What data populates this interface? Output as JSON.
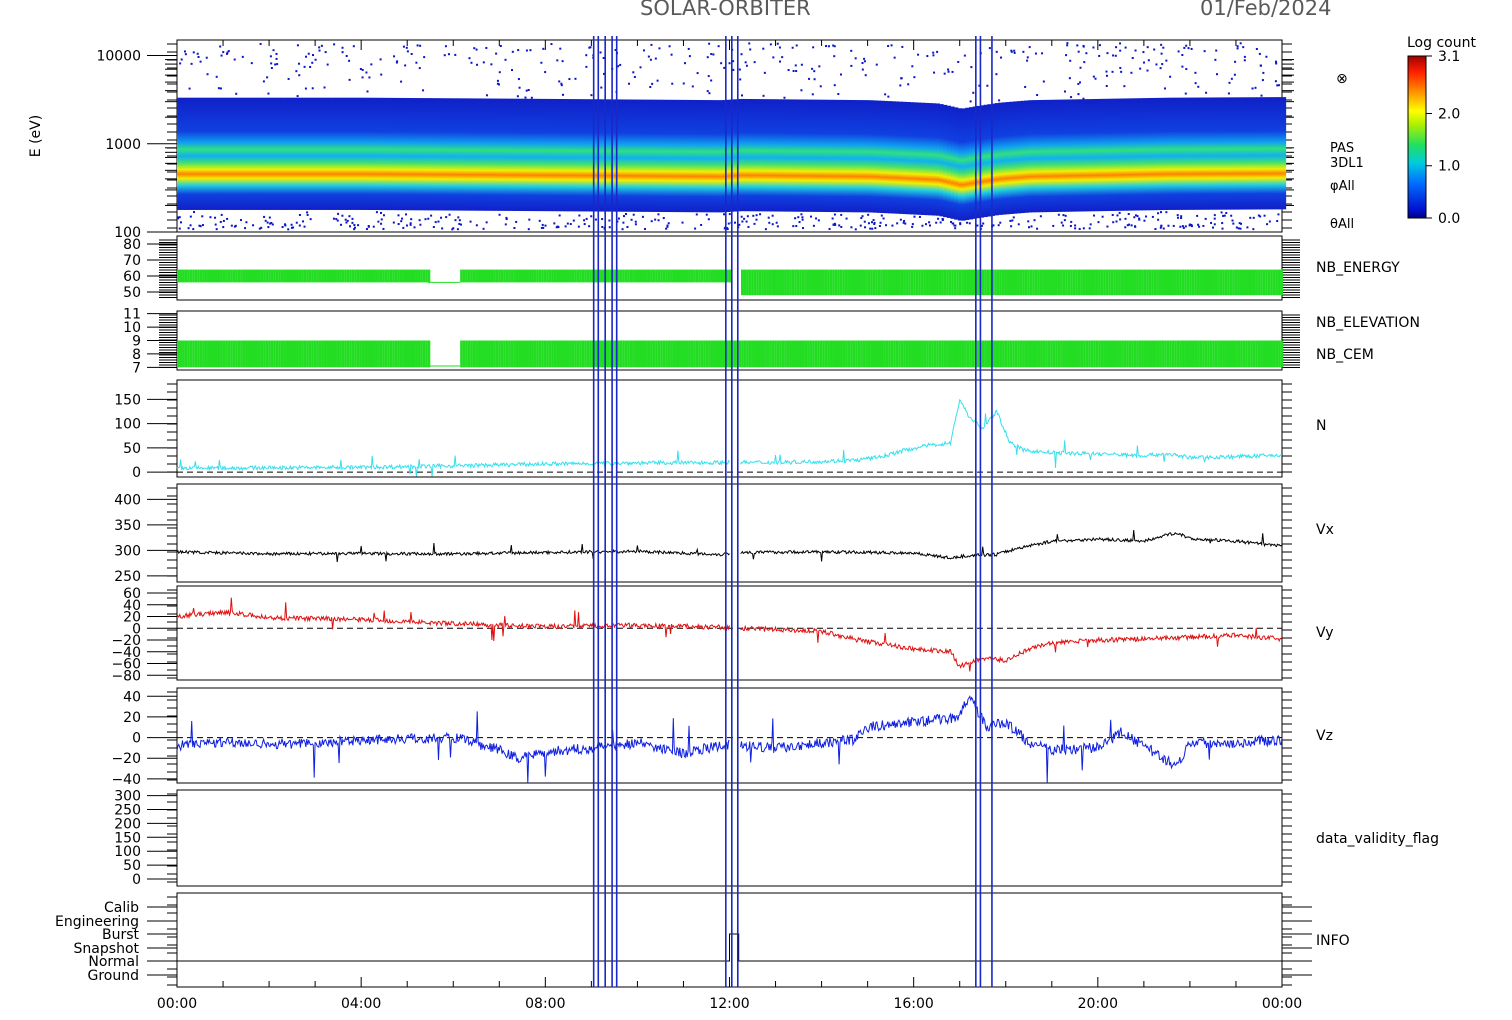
{
  "header": {
    "title": "SOLAR-ORBITER",
    "date": "01/Feb/2024"
  },
  "colors": {
    "spec_blue": "#0a14c8",
    "green": "#22dd22",
    "cyan": "#33e0ee",
    "black": "#000000",
    "red": "#e01010",
    "blue": "#1020e0",
    "vline": "#1a28c8",
    "dvf": "#666666"
  },
  "chart_data": [
    {
      "type": "heatmap",
      "panel": "spectrogram",
      "ylabel": "E (eV)",
      "yscale": "log",
      "ylim": [
        100,
        15000
      ],
      "yticks": [
        {
          "v": 10000,
          "t": "10000"
        },
        {
          "v": 1000,
          "t": "1000"
        },
        {
          "v": 100,
          "t": "100"
        }
      ],
      "right_labels": [
        "PAS",
        "3DL1",
        "φAll",
        "θAll"
      ],
      "legend_symbol": "⊗",
      "colorbar": {
        "title": "Log count",
        "range": [
          0.0,
          3.1
        ],
        "ticks": [
          {
            "v": 3.1,
            "t": "3.1"
          },
          {
            "v": 2.0,
            "t": "2.0"
          },
          {
            "v": 1.0,
            "t": "1.0"
          },
          {
            "v": 0.0,
            "t": "0.0"
          }
        ]
      },
      "peak_energy_eV": [
        {
          "h": 0,
          "e": 640
        },
        {
          "h": 4,
          "e": 640
        },
        {
          "h": 8,
          "e": 620
        },
        {
          "h": 11.8,
          "e": 600
        },
        {
          "h": 12.2,
          "e": 620
        },
        {
          "h": 15,
          "e": 600
        },
        {
          "h": 16.5,
          "e": 550
        },
        {
          "h": 17,
          "e": 480
        },
        {
          "h": 17.8,
          "e": 560
        },
        {
          "h": 18.5,
          "e": 600
        },
        {
          "h": 21.5,
          "e": 640
        },
        {
          "h": 24,
          "e": 650
        }
      ]
    },
    {
      "type": "bar",
      "panel": "nb_energy",
      "label": "NB_ENERGY",
      "ylim": [
        45,
        85
      ],
      "yticks": [
        {
          "v": 80,
          "t": "80"
        },
        {
          "v": 70,
          "t": "70"
        },
        {
          "v": 60,
          "t": "60"
        },
        {
          "v": 50,
          "t": "50"
        }
      ],
      "segments": [
        {
          "x0": 0,
          "x1": 5.45,
          "low": 56,
          "high": 64
        },
        {
          "x0": 6.15,
          "x1": 12.0,
          "low": 56,
          "high": 64
        },
        {
          "x0": 12.25,
          "x1": 24,
          "low": 48,
          "high": 64
        }
      ],
      "gap_level": 56,
      "gap": [
        5.45,
        6.15
      ]
    },
    {
      "type": "bar",
      "panel": "nb_elev",
      "labels": [
        "NB_ELEVATION",
        "NB_CEM"
      ],
      "ylim": [
        6.8,
        11.2
      ],
      "yticks": [
        {
          "v": 11,
          "t": "11"
        },
        {
          "v": 10,
          "t": "10"
        },
        {
          "v": 9,
          "t": "9"
        },
        {
          "v": 8,
          "t": "8"
        },
        {
          "v": 7,
          "t": "7"
        }
      ],
      "segments": [
        {
          "x0": 0,
          "x1": 5.45,
          "low": 7,
          "high": 9
        },
        {
          "x0": 6.15,
          "x1": 24,
          "low": 7,
          "high": 9
        }
      ],
      "gap": [
        5.45,
        6.15
      ]
    },
    {
      "type": "line",
      "panel": "density",
      "label": "N",
      "ylim": [
        -10,
        190
      ],
      "yticks": [
        {
          "v": 150,
          "t": "150"
        },
        {
          "v": 100,
          "t": "100"
        },
        {
          "v": 50,
          "t": "50"
        },
        {
          "v": 0,
          "t": "0"
        }
      ],
      "dashed_zero": true,
      "points": [
        [
          0,
          8
        ],
        [
          2,
          9
        ],
        [
          4,
          10
        ],
        [
          6,
          13
        ],
        [
          8,
          17
        ],
        [
          10,
          19
        ],
        [
          12,
          20
        ],
        [
          13,
          20
        ],
        [
          14,
          22
        ],
        [
          14.8,
          25
        ],
        [
          15.3,
          32
        ],
        [
          15.8,
          45
        ],
        [
          16.3,
          55
        ],
        [
          16.8,
          60
        ],
        [
          17.0,
          150
        ],
        [
          17.2,
          115
        ],
        [
          17.5,
          90
        ],
        [
          17.8,
          125
        ],
        [
          18.1,
          60
        ],
        [
          18.4,
          45
        ],
        [
          19,
          40
        ],
        [
          20,
          38
        ],
        [
          21,
          34
        ],
        [
          21.5,
          38
        ],
        [
          22,
          30
        ],
        [
          23,
          32
        ],
        [
          24,
          35
        ]
      ],
      "noise": 4
    },
    {
      "type": "line",
      "panel": "vx",
      "label": "Vx",
      "ylim": [
        238,
        430
      ],
      "yticks": [
        {
          "v": 400,
          "t": "400"
        },
        {
          "v": 350,
          "t": "350"
        },
        {
          "v": 300,
          "t": "300"
        },
        {
          "v": 250,
          "t": "250"
        }
      ],
      "points": [
        [
          0,
          297
        ],
        [
          2,
          293
        ],
        [
          4,
          294
        ],
        [
          6,
          293
        ],
        [
          8,
          296
        ],
        [
          10,
          298
        ],
        [
          11.8,
          292
        ],
        [
          12.2,
          296
        ],
        [
          14,
          297
        ],
        [
          16,
          295
        ],
        [
          16.8,
          285
        ],
        [
          17.2,
          290
        ],
        [
          17.8,
          292
        ],
        [
          18.3,
          305
        ],
        [
          19,
          318
        ],
        [
          20,
          322
        ],
        [
          21,
          318
        ],
        [
          21.7,
          335
        ],
        [
          22,
          323
        ],
        [
          23,
          318
        ],
        [
          24,
          308
        ]
      ],
      "noise": 3
    },
    {
      "type": "line",
      "panel": "vy",
      "label": "Vy",
      "ylim": [
        -88,
        72
      ],
      "yticks": [
        {
          "v": 60,
          "t": "60"
        },
        {
          "v": 40,
          "t": "40"
        },
        {
          "v": 20,
          "t": "20"
        },
        {
          "v": 0,
          "t": "0"
        },
        {
          "v": -20,
          "t": "−20"
        },
        {
          "v": -40,
          "t": "−40"
        },
        {
          "v": -60,
          "t": "−60"
        },
        {
          "v": -80,
          "t": "−80"
        }
      ],
      "dashed_zero": true,
      "points": [
        [
          0,
          20
        ],
        [
          1,
          28
        ],
        [
          2,
          18
        ],
        [
          4,
          15
        ],
        [
          6,
          8
        ],
        [
          8,
          3
        ],
        [
          10,
          5
        ],
        [
          11.8,
          2
        ],
        [
          12.2,
          0
        ],
        [
          14,
          -5
        ],
        [
          14.8,
          -20
        ],
        [
          16,
          -35
        ],
        [
          16.8,
          -40
        ],
        [
          17.0,
          -65
        ],
        [
          17.5,
          -50
        ],
        [
          18,
          -55
        ],
        [
          18.5,
          -35
        ],
        [
          19,
          -25
        ],
        [
          20,
          -20
        ],
        [
          21,
          -18
        ],
        [
          22,
          -15
        ],
        [
          23,
          -12
        ],
        [
          24,
          -18
        ]
      ],
      "noise": 4
    },
    {
      "type": "line",
      "panel": "vz",
      "label": "Vz",
      "ylim": [
        -44,
        48
      ],
      "yticks": [
        {
          "v": 40,
          "t": "40"
        },
        {
          "v": 20,
          "t": "20"
        },
        {
          "v": 0,
          "t": "0"
        },
        {
          "v": -20,
          "t": "−20"
        },
        {
          "v": -40,
          "t": "−40"
        }
      ],
      "dashed_zero": true,
      "points": [
        [
          0,
          -8
        ],
        [
          1,
          -4
        ],
        [
          2,
          -6
        ],
        [
          3,
          -6
        ],
        [
          4,
          -2
        ],
        [
          6,
          0
        ],
        [
          7,
          -12
        ],
        [
          7.4,
          -20
        ],
        [
          8,
          -14
        ],
        [
          9,
          -10
        ],
        [
          10,
          -5
        ],
        [
          11,
          -15
        ],
        [
          11.8,
          -8
        ],
        [
          12.2,
          -8
        ],
        [
          13,
          -10
        ],
        [
          14,
          -5
        ],
        [
          14.7,
          -2
        ],
        [
          15,
          10
        ],
        [
          16,
          15
        ],
        [
          17,
          20
        ],
        [
          17.2,
          40
        ],
        [
          17.6,
          10
        ],
        [
          18,
          15
        ],
        [
          18.5,
          -5
        ],
        [
          19,
          -12
        ],
        [
          20,
          -10
        ],
        [
          20.5,
          5
        ],
        [
          21,
          -8
        ],
        [
          21.7,
          -28
        ],
        [
          22,
          -5
        ],
        [
          23,
          -5
        ],
        [
          24,
          -2
        ]
      ],
      "noise": 5
    },
    {
      "type": "line",
      "panel": "dvf",
      "label": "data_validity_flag",
      "ylim": [
        -25,
        320
      ],
      "yticks": [
        {
          "v": 300,
          "t": "300"
        },
        {
          "v": 250,
          "t": "250"
        },
        {
          "v": 200,
          "t": "200"
        },
        {
          "v": 150,
          "t": "150"
        },
        {
          "v": 100,
          "t": "100"
        },
        {
          "v": 50,
          "t": "50"
        },
        {
          "v": 0,
          "t": "0"
        }
      ]
    },
    {
      "type": "line",
      "panel": "info",
      "label": "INFO",
      "levels": [
        "Calib",
        "Engineering",
        "Burst",
        "Snapshot",
        "Normal",
        "Ground"
      ],
      "steps": [
        [
          0,
          "Normal"
        ],
        [
          12.0,
          "Burst"
        ],
        [
          12.2,
          "Normal"
        ],
        [
          24,
          "Normal"
        ]
      ]
    }
  ],
  "x_axis": {
    "range": [
      0,
      24
    ],
    "ticks": [
      {
        "h": 0,
        "t": "00:00"
      },
      {
        "h": 4,
        "t": "04:00"
      },
      {
        "h": 8,
        "t": "08:00"
      },
      {
        "h": 12,
        "t": "12:00"
      },
      {
        "h": 16,
        "t": "16:00"
      },
      {
        "h": 20,
        "t": "20:00"
      },
      {
        "h": 24,
        "t": "00:00"
      }
    ]
  },
  "event_lines": [
    9.05,
    9.15,
    9.3,
    9.45,
    9.55,
    11.92,
    12.05,
    12.18,
    17.35,
    17.45,
    17.7
  ]
}
